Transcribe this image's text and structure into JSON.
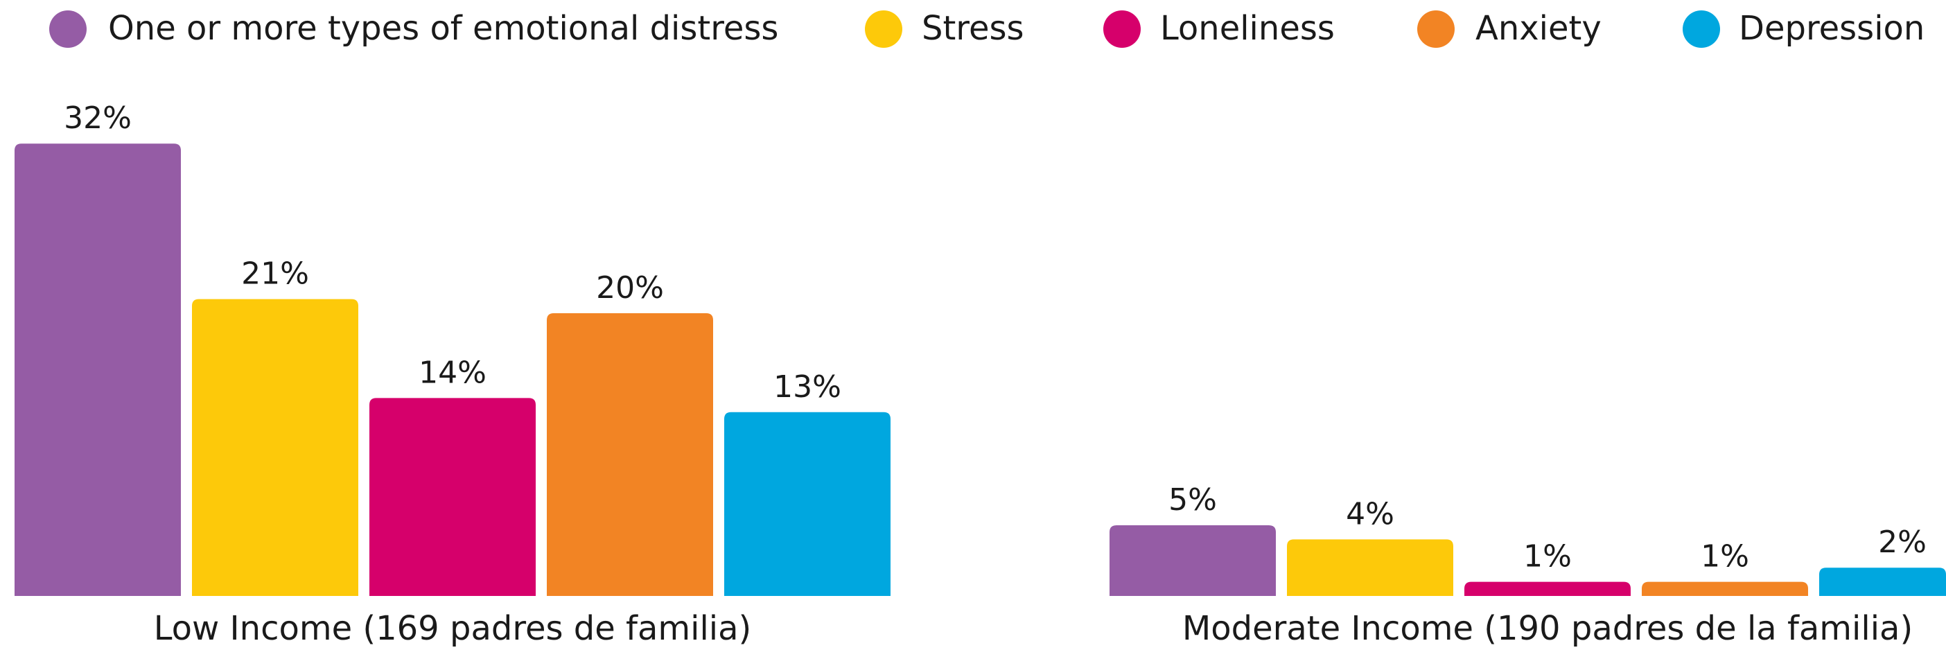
{
  "chart_data": {
    "type": "bar",
    "categories": [
      "Low Income (169 padres de familia)",
      "Moderate Income (190 padres de la familia)"
    ],
    "series": [
      {
        "name": "One or more types of emotional distress",
        "color": "#955ca5",
        "values": [
          32,
          5
        ],
        "value_labels": [
          "32%",
          "5%"
        ]
      },
      {
        "name": "Stress",
        "color": "#fdc90a",
        "values": [
          21,
          4
        ],
        "value_labels": [
          "21%",
          "4%"
        ]
      },
      {
        "name": "Loneliness",
        "color": "#d6006b",
        "values": [
          14,
          1
        ],
        "value_labels": [
          "14%",
          "1%"
        ]
      },
      {
        "name": "Anxiety",
        "color": "#f28424",
        "values": [
          20,
          1
        ],
        "value_labels": [
          "20%",
          "1%"
        ]
      },
      {
        "name": "Depression",
        "color": "#00a7df",
        "values": [
          13,
          2
        ],
        "value_labels": [
          "13%",
          "2%"
        ]
      }
    ]
  }
}
